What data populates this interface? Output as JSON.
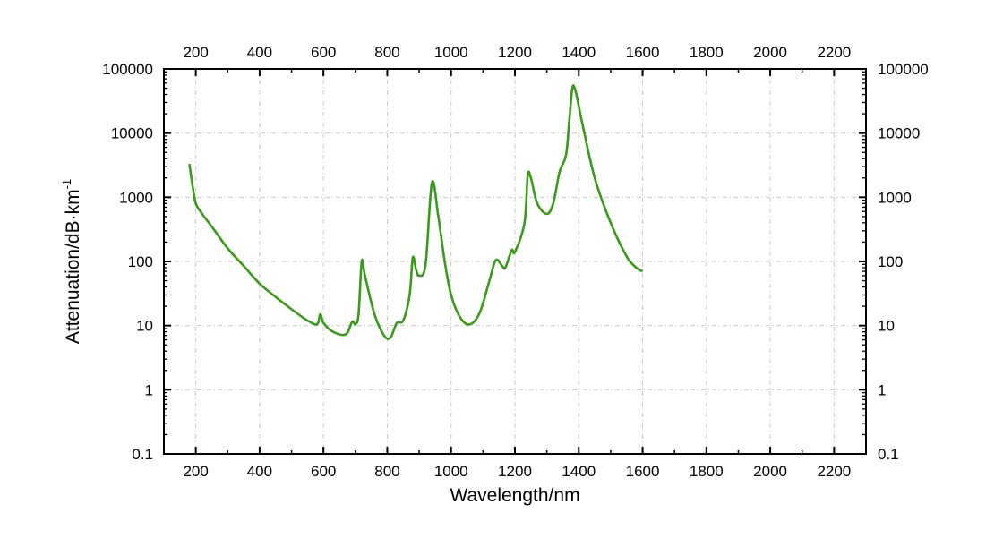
{
  "chart_data": {
    "type": "line",
    "title": "",
    "xlabel": "Wavelength/nm",
    "ylabel": "Attenuation/dB·km",
    "ylabel_superscript": "-1",
    "xlim": [
      100,
      2300
    ],
    "ylim": [
      0.1,
      100000
    ],
    "yscale": "log",
    "grid": true,
    "x_ticks": [
      200,
      400,
      600,
      800,
      1000,
      1200,
      1400,
      1600,
      1800,
      2000,
      2200
    ],
    "x_tick_labels": [
      "200",
      "400",
      "600",
      "800",
      "1000",
      "1200",
      "1400",
      "1600",
      "1800",
      "2000",
      "2200"
    ],
    "y_ticks": [
      0.1,
      1,
      10,
      100,
      1000,
      10000,
      100000
    ],
    "y_tick_labels": [
      "0.1",
      "1",
      "10",
      "100",
      "1000",
      "10000",
      "100000"
    ],
    "series": [
      {
        "name": "attenuation",
        "color": "#3a9a1a",
        "x": [
          180,
          190,
          200,
          220,
          250,
          300,
          350,
          400,
          450,
          500,
          550,
          580,
          590,
          600,
          630,
          670,
          690,
          700,
          710,
          720,
          730,
          760,
          790,
          810,
          830,
          850,
          870,
          880,
          890,
          900,
          920,
          940,
          960,
          980,
          1000,
          1030,
          1060,
          1090,
          1120,
          1140,
          1160,
          1170,
          1190,
          1200,
          1230,
          1240,
          1250,
          1270,
          1300,
          1320,
          1340,
          1360,
          1370,
          1380,
          1390,
          1410,
          1450,
          1500,
          1550,
          1580,
          1600
        ],
        "y": [
          3300,
          1500,
          800,
          550,
          350,
          160,
          85,
          45,
          28,
          18,
          12,
          10.5,
          15,
          11,
          8,
          7.3,
          11.5,
          10.5,
          15,
          100,
          60,
          15,
          7,
          6.5,
          11,
          12,
          30,
          115,
          75,
          60,
          90,
          1700,
          500,
          100,
          30,
          13,
          10.5,
          16,
          50,
          105,
          85,
          80,
          150,
          140,
          400,
          2200,
          2000,
          800,
          550,
          800,
          2500,
          4500,
          15000,
          50000,
          45000,
          15000,
          2000,
          400,
          120,
          80,
          70
        ]
      }
    ]
  }
}
